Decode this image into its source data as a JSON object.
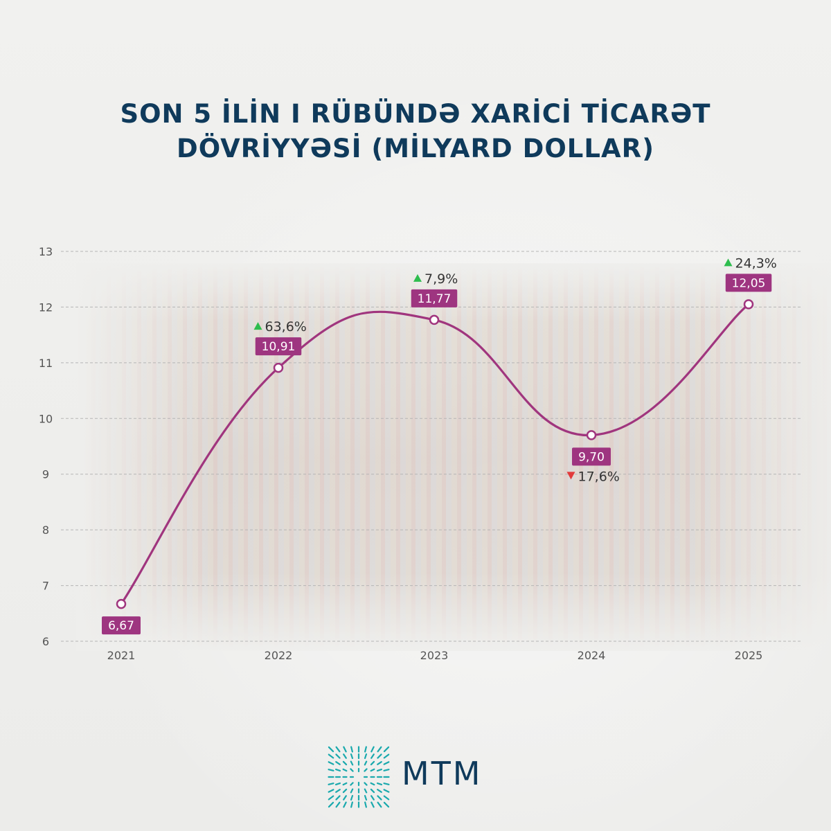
{
  "title_lines": [
    "SON 5 İLİN I RÜBÜNDƏ XARİCİ TİCARƏT",
    "DÖVRİYYƏSİ (MİLYARD DOLLAR)"
  ],
  "chart_data": {
    "type": "line",
    "categories": [
      "2021",
      "2022",
      "2023",
      "2024",
      "2025"
    ],
    "series": [
      {
        "values": [
          6.67,
          10.91,
          11.77,
          9.7,
          12.05
        ]
      }
    ],
    "value_labels": [
      "6,67",
      "10,91",
      "11,77",
      "9,70",
      "12,05"
    ],
    "changes": [
      null,
      {
        "text": "63,6%",
        "direction": "up"
      },
      {
        "text": "7,9%",
        "direction": "up"
      },
      {
        "text": "17,6%",
        "direction": "down"
      },
      {
        "text": "24,3%",
        "direction": "up"
      }
    ],
    "ylim": [
      6,
      13
    ],
    "yticks": [
      6,
      7,
      8,
      9,
      10,
      11,
      12,
      13
    ],
    "grid": true,
    "grid_style": "dashed",
    "colors": {
      "line": "#a0357e",
      "label_bg": "#9e3580",
      "up": "#2ebd4e",
      "down": "#e23a3a",
      "axis_text": "#555555"
    }
  },
  "logo": {
    "text": "MTM",
    "color": "#0f3a5b",
    "mark_color": "#1aa9ad"
  }
}
